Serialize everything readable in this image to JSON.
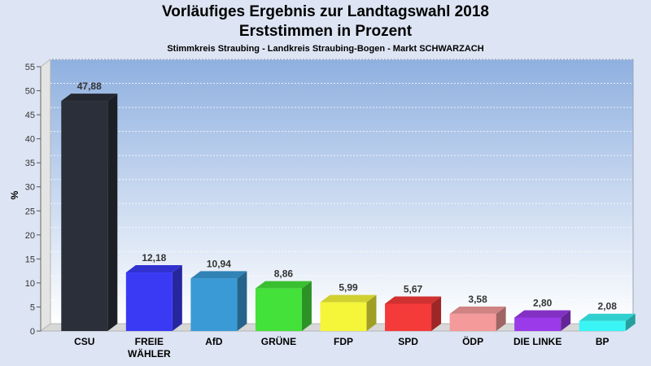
{
  "chart_data": {
    "type": "bar",
    "title": "Vorläufiges Ergebnis zur Landtagswahl 2018",
    "subtitle": "Erststimmen in Prozent",
    "caption": "Stimmkreis Straubing - Landkreis Straubing-Bogen - Markt SCHWARZACH",
    "xlabel": "",
    "ylabel": "%",
    "ylim": [
      0,
      55
    ],
    "yticks": [
      0,
      5,
      10,
      15,
      20,
      25,
      30,
      35,
      40,
      45,
      50,
      55
    ],
    "grid": true,
    "categories": [
      "CSU",
      "FREIE\nWÄHLER",
      "AfD",
      "GRÜNE",
      "FDP",
      "SPD",
      "ÖDP",
      "DIE LINKE",
      "BP"
    ],
    "values": [
      47.88,
      12.18,
      10.94,
      8.86,
      5.99,
      5.67,
      3.58,
      2.8,
      2.08
    ],
    "value_labels": [
      "47,88",
      "12,18",
      "10,94",
      "8,86",
      "5,99",
      "5,67",
      "3,58",
      "2,80",
      "2,08"
    ],
    "colors": [
      "#2b2f3a",
      "#3a3af5",
      "#3a9ad6",
      "#44e13a",
      "#f5f53a",
      "#f53a3a",
      "#f59a9a",
      "#9a3ae8",
      "#3af5f5"
    ]
  }
}
